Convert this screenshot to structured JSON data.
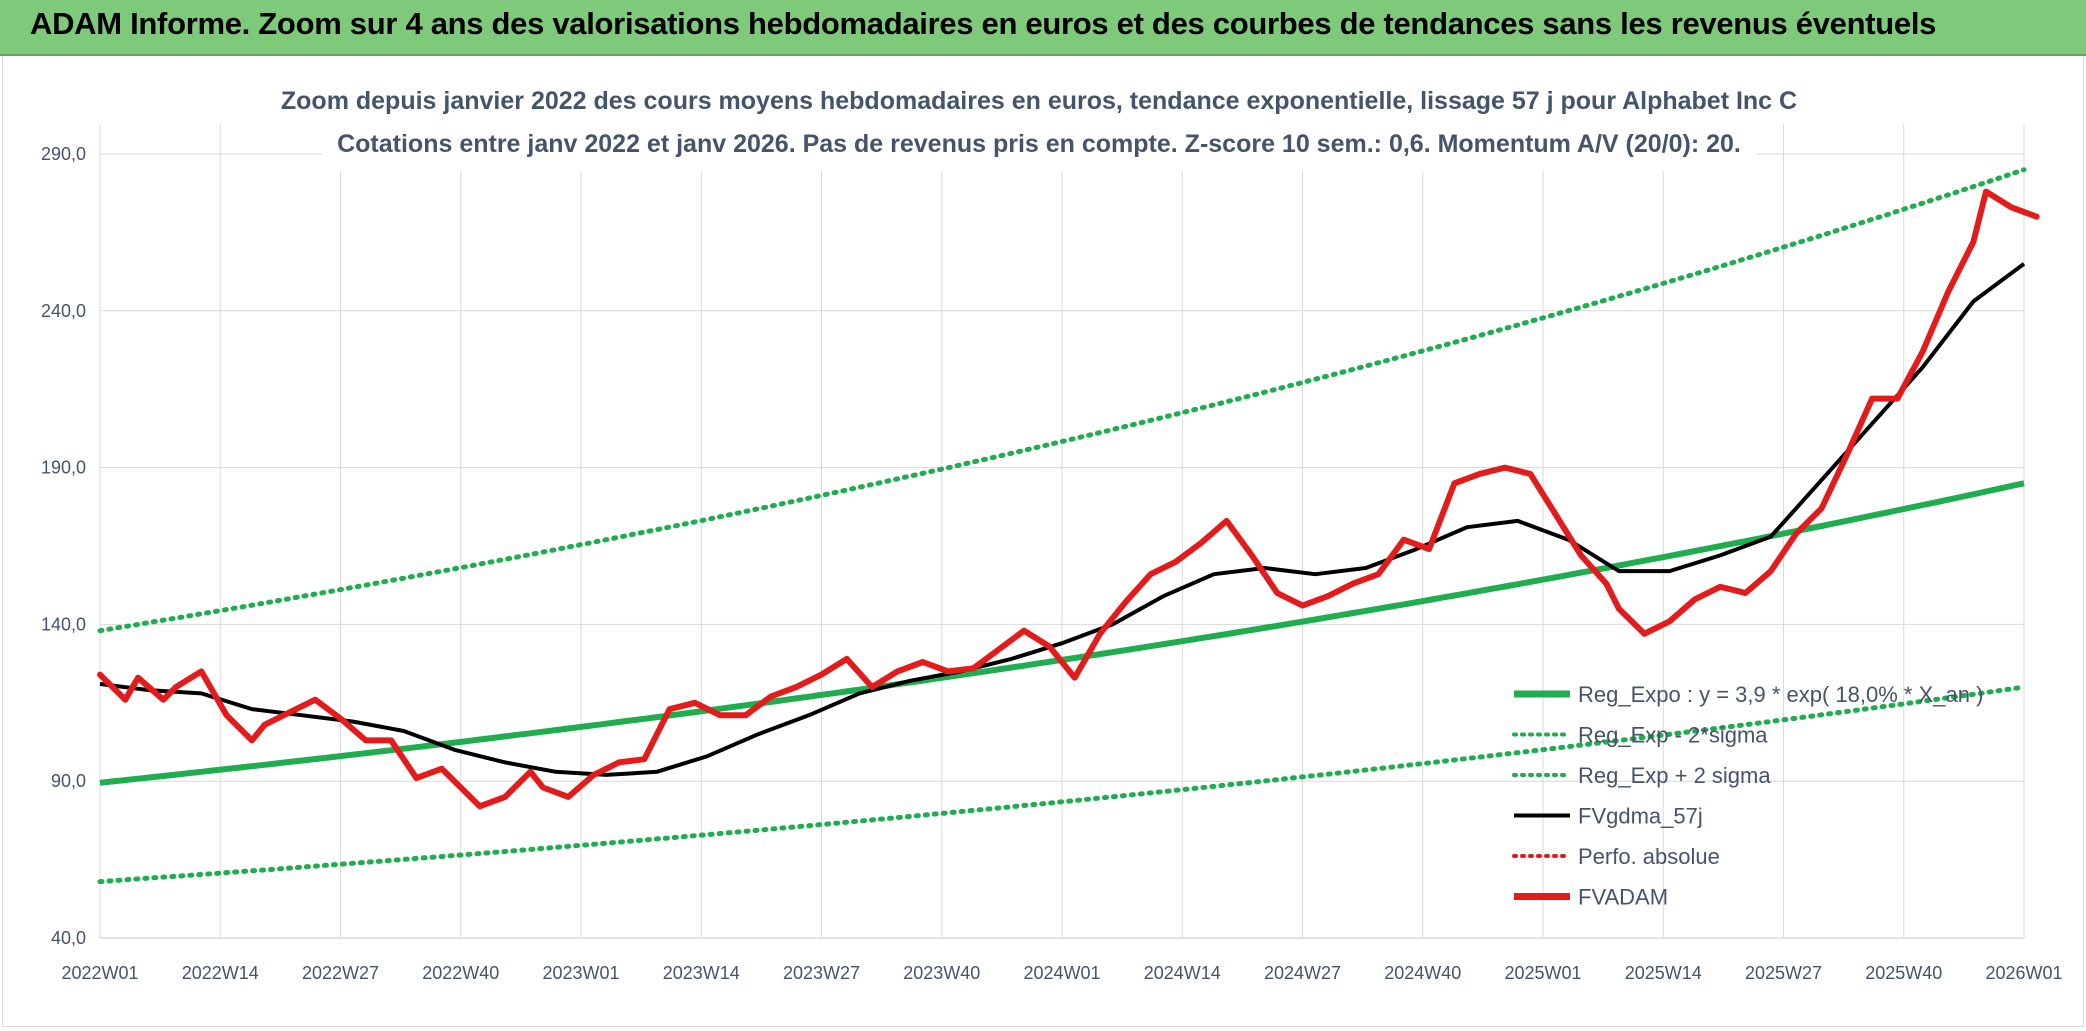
{
  "header": {
    "title": "ADAM Informe. Zoom sur 4 ans des valorisations hebdomadaires en euros et des courbes de tendances sans les revenus éventuels"
  },
  "chart_data": {
    "type": "line",
    "title_line1": "Zoom depuis janvier 2022 des cours moyens hebdomadaires en euros, tendance exponentielle, lissage 57 j pour Alphabet Inc C",
    "title_line2": "Cotations entre janv 2022 et janv 2026. Pas de revenus pris en compte. Z-score 10 sem.: 0,6. Momentum A/V (20/0): 20.",
    "y_ticks": [
      "40,0",
      "90,0",
      "140,0",
      "190,0",
      "240,0",
      "290,0"
    ],
    "ylim": [
      40,
      290
    ],
    "x_ticks": [
      "2022W01",
      "2022W14",
      "2022W27",
      "2022W40",
      "2023W01",
      "2023W14",
      "2023W27",
      "2023W40",
      "2024W01",
      "2024W14",
      "2024W27",
      "2024W40",
      "2025W01",
      "2025W14",
      "2025W27",
      "2025W40",
      "2026W01"
    ],
    "n_weeks": 209,
    "legend": [
      {
        "label": "Reg_Expo : y = 3,9 * exp( 18,0% * X_an )",
        "color": "#1fad4f",
        "style": "solid-thick"
      },
      {
        "label": "Reg_Exp - 2*sigma",
        "color": "#1fad4f",
        "style": "dotted"
      },
      {
        "label": "Reg_Exp + 2 sigma",
        "color": "#1fad4f",
        "style": "dotted"
      },
      {
        "label": "FVgdma_57j",
        "color": "#000000",
        "style": "solid"
      },
      {
        "label": "Perfo. absolue",
        "color": "#e31b1b",
        "style": "dotted"
      },
      {
        "label": "FVADAM",
        "color": "#e31b1b",
        "style": "solid-thick"
      }
    ],
    "series": [
      {
        "name": "Reg_Expo",
        "start": 89.5,
        "end": 185,
        "color": "#1fad4f"
      },
      {
        "name": "Reg_Exp - 2*sigma",
        "start": 58,
        "end": 120,
        "color": "#1fad4f"
      },
      {
        "name": "Reg_Exp + 2 sigma",
        "start": 138,
        "end": 285,
        "color": "#1fad4f"
      },
      {
        "name": "FVgdma_57j",
        "color": "#000000",
        "points": [
          [
            0,
            121
          ],
          [
            8,
            119
          ],
          [
            16,
            118
          ],
          [
            24,
            113
          ],
          [
            32,
            111
          ],
          [
            40,
            109
          ],
          [
            48,
            106
          ],
          [
            56,
            100
          ],
          [
            64,
            96
          ],
          [
            72,
            93
          ],
          [
            80,
            92
          ],
          [
            88,
            93
          ],
          [
            96,
            98
          ],
          [
            104,
            105
          ],
          [
            112,
            111
          ],
          [
            120,
            118
          ],
          [
            128,
            122
          ],
          [
            136,
            125
          ],
          [
            144,
            129
          ],
          [
            152,
            134
          ],
          [
            160,
            140
          ],
          [
            168,
            149
          ],
          [
            176,
            156
          ],
          [
            184,
            158
          ],
          [
            192,
            156
          ],
          [
            200,
            158
          ],
          [
            208,
            164
          ],
          [
            216,
            171
          ],
          [
            224,
            173
          ],
          [
            232,
            167
          ],
          [
            240,
            157
          ],
          [
            248,
            157
          ],
          [
            256,
            162
          ],
          [
            264,
            168
          ],
          [
            272,
            186
          ],
          [
            280,
            204
          ],
          [
            288,
            222
          ],
          [
            296,
            243
          ],
          [
            304,
            255
          ]
        ]
      },
      {
        "name": "FVADAM",
        "color": "#e31b1b",
        "points": [
          [
            0,
            124
          ],
          [
            4,
            116
          ],
          [
            6,
            123
          ],
          [
            10,
            116
          ],
          [
            12,
            120
          ],
          [
            16,
            125
          ],
          [
            20,
            111
          ],
          [
            24,
            103
          ],
          [
            26,
            108
          ],
          [
            30,
            112
          ],
          [
            34,
            116
          ],
          [
            38,
            110
          ],
          [
            42,
            103
          ],
          [
            46,
            103
          ],
          [
            50,
            91
          ],
          [
            54,
            94
          ],
          [
            58,
            86
          ],
          [
            60,
            82
          ],
          [
            64,
            85
          ],
          [
            68,
            93
          ],
          [
            70,
            88
          ],
          [
            74,
            85
          ],
          [
            78,
            92
          ],
          [
            82,
            96
          ],
          [
            86,
            97
          ],
          [
            90,
            113
          ],
          [
            94,
            115
          ],
          [
            98,
            111
          ],
          [
            102,
            111
          ],
          [
            106,
            117
          ],
          [
            110,
            120
          ],
          [
            114,
            124
          ],
          [
            118,
            129
          ],
          [
            122,
            120
          ],
          [
            126,
            125
          ],
          [
            130,
            128
          ],
          [
            134,
            125
          ],
          [
            138,
            126
          ],
          [
            142,
            132
          ],
          [
            146,
            138
          ],
          [
            150,
            133
          ],
          [
            154,
            123
          ],
          [
            158,
            137
          ],
          [
            162,
            147
          ],
          [
            166,
            156
          ],
          [
            170,
            160
          ],
          [
            174,
            166
          ],
          [
            178,
            173
          ],
          [
            182,
            162
          ],
          [
            186,
            150
          ],
          [
            190,
            146
          ],
          [
            194,
            149
          ],
          [
            198,
            153
          ],
          [
            202,
            156
          ],
          [
            206,
            167
          ],
          [
            210,
            164
          ],
          [
            214,
            185
          ],
          [
            218,
            188
          ],
          [
            222,
            190
          ],
          [
            226,
            188
          ],
          [
            230,
            175
          ],
          [
            234,
            162
          ],
          [
            238,
            153
          ],
          [
            240,
            145
          ],
          [
            244,
            137
          ],
          [
            248,
            141
          ],
          [
            252,
            148
          ],
          [
            256,
            152
          ],
          [
            260,
            150
          ],
          [
            264,
            157
          ],
          [
            268,
            169
          ],
          [
            272,
            177
          ],
          [
            276,
            194
          ],
          [
            280,
            212
          ],
          [
            284,
            212
          ],
          [
            288,
            227
          ],
          [
            292,
            246
          ],
          [
            296,
            262
          ],
          [
            298,
            278
          ],
          [
            302,
            273
          ],
          [
            306,
            270
          ]
        ]
      }
    ]
  }
}
